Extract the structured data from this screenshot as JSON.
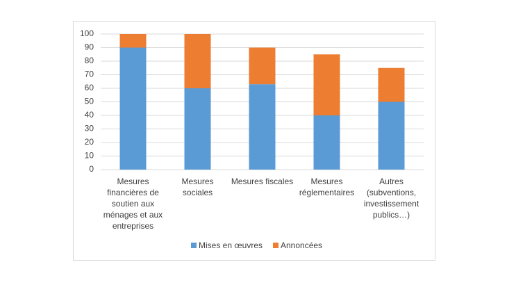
{
  "chart_data": {
    "type": "stacked_bar",
    "categories": [
      "Mesures financières de soutien aux ménages et aux entreprises",
      "Mesures sociales",
      "Mesures fiscales",
      "Mesures réglementaires",
      "Autres (subventions, investissement publics…)"
    ],
    "series": [
      {
        "name": "Mises en œuvres",
        "color": "#5b9bd5",
        "values": [
          90,
          60,
          63,
          40,
          50
        ]
      },
      {
        "name": "Annoncées",
        "color": "#ed7d31",
        "values": [
          10,
          40,
          27,
          45,
          25
        ]
      }
    ],
    "ylim": [
      0,
      100
    ],
    "yticks": [
      0,
      10,
      20,
      30,
      40,
      50,
      60,
      70,
      80,
      90,
      100
    ],
    "grid": true,
    "legend": "bottom"
  }
}
